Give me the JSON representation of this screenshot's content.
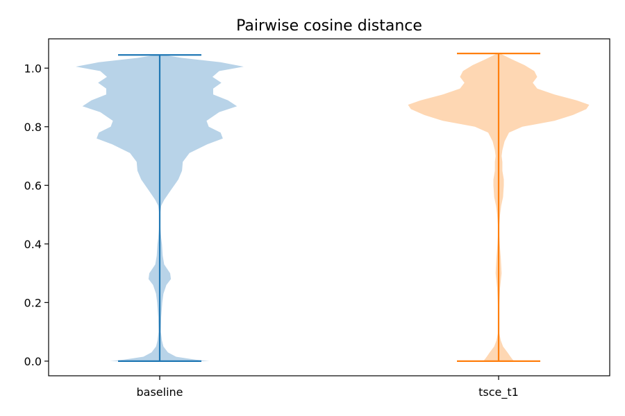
{
  "chart_data": {
    "type": "violin",
    "title": "Pairwise cosine distance",
    "xlabel": "",
    "ylabel": "",
    "categories": [
      "baseline",
      "tsce_t1"
    ],
    "ylim": [
      -0.05,
      1.1
    ],
    "yticks": [
      0.0,
      0.2,
      0.4,
      0.6,
      0.8,
      1.0
    ],
    "ytick_labels": [
      "0.0",
      "0.2",
      "0.4",
      "0.6",
      "0.8",
      "1.0"
    ],
    "grid": false,
    "series": [
      {
        "category": "baseline",
        "min": 0.0,
        "max": 1.045,
        "color": "#1f77b4",
        "fill": "#b8d3e8",
        "density": [
          [
            0.0,
            0.67
          ],
          [
            0.005,
            0.48
          ],
          [
            0.015,
            0.22
          ],
          [
            0.03,
            0.11
          ],
          [
            0.05,
            0.05
          ],
          [
            0.07,
            0.03
          ],
          [
            0.1,
            0.015
          ],
          [
            0.15,
            0.02
          ],
          [
            0.2,
            0.035
          ],
          [
            0.23,
            0.05
          ],
          [
            0.26,
            0.09
          ],
          [
            0.28,
            0.15
          ],
          [
            0.3,
            0.14
          ],
          [
            0.33,
            0.06
          ],
          [
            0.36,
            0.04
          ],
          [
            0.4,
            0.03
          ],
          [
            0.42,
            0.02
          ],
          [
            0.45,
            0.01
          ],
          [
            0.5,
            0.005
          ],
          [
            0.53,
            0.02
          ],
          [
            0.55,
            0.06
          ],
          [
            0.58,
            0.14
          ],
          [
            0.62,
            0.25
          ],
          [
            0.65,
            0.3
          ],
          [
            0.68,
            0.31
          ],
          [
            0.71,
            0.4
          ],
          [
            0.74,
            0.64
          ],
          [
            0.76,
            0.85
          ],
          [
            0.78,
            0.82
          ],
          [
            0.8,
            0.66
          ],
          [
            0.82,
            0.63
          ],
          [
            0.85,
            0.8
          ],
          [
            0.87,
            1.04
          ],
          [
            0.89,
            0.92
          ],
          [
            0.91,
            0.72
          ],
          [
            0.93,
            0.72
          ],
          [
            0.95,
            0.83
          ],
          [
            0.97,
            0.71
          ],
          [
            0.99,
            0.8
          ],
          [
            1.005,
            1.13
          ],
          [
            1.02,
            0.82
          ],
          [
            1.035,
            0.3
          ],
          [
            1.045,
            0.05
          ]
        ]
      },
      {
        "category": "tsce_t1",
        "min": 0.0,
        "max": 1.05,
        "color": "#ff7f0e",
        "fill": "#fed7b3",
        "density": [
          [
            0.0,
            0.21
          ],
          [
            0.005,
            0.19
          ],
          [
            0.015,
            0.16
          ],
          [
            0.03,
            0.12
          ],
          [
            0.05,
            0.06
          ],
          [
            0.07,
            0.03
          ],
          [
            0.1,
            0.005
          ],
          [
            0.15,
            0.005
          ],
          [
            0.2,
            0.01
          ],
          [
            0.25,
            0.02
          ],
          [
            0.3,
            0.04
          ],
          [
            0.35,
            0.03
          ],
          [
            0.4,
            0.015
          ],
          [
            0.45,
            0.005
          ],
          [
            0.5,
            0.02
          ],
          [
            0.53,
            0.035
          ],
          [
            0.56,
            0.06
          ],
          [
            0.6,
            0.07
          ],
          [
            0.62,
            0.07
          ],
          [
            0.65,
            0.05
          ],
          [
            0.68,
            0.05
          ],
          [
            0.7,
            0.04
          ],
          [
            0.72,
            0.05
          ],
          [
            0.75,
            0.08
          ],
          [
            0.78,
            0.14
          ],
          [
            0.8,
            0.32
          ],
          [
            0.82,
            0.75
          ],
          [
            0.84,
            1.0
          ],
          [
            0.86,
            1.18
          ],
          [
            0.875,
            1.22
          ],
          [
            0.89,
            1.05
          ],
          [
            0.91,
            0.75
          ],
          [
            0.93,
            0.52
          ],
          [
            0.95,
            0.46
          ],
          [
            0.97,
            0.52
          ],
          [
            0.99,
            0.48
          ],
          [
            1.01,
            0.35
          ],
          [
            1.03,
            0.18
          ],
          [
            1.05,
            0.02
          ]
        ]
      }
    ]
  }
}
